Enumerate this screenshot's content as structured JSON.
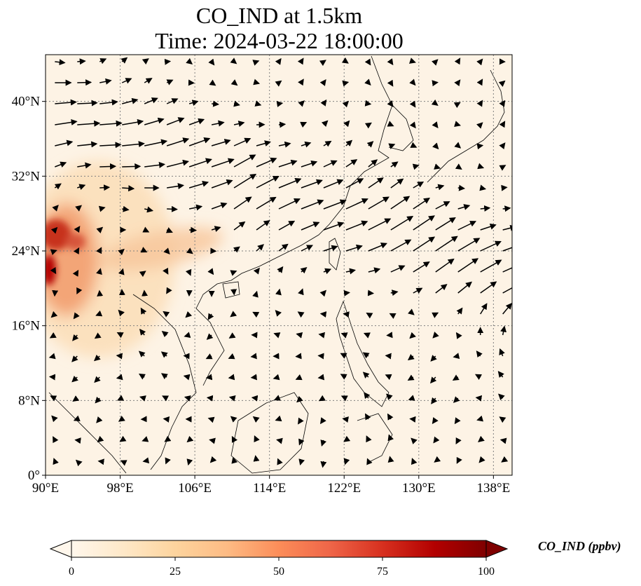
{
  "title": {
    "line1": "CO_IND at 1.5km",
    "line2": "Time: 2024-03-22 18:00:00"
  },
  "map": {
    "projection": "PlateCarree",
    "extent": {
      "lon": [
        90,
        140
      ],
      "lat": [
        0,
        45
      ]
    },
    "grid": true,
    "lon_ticks": [
      {
        "value": 90,
        "label": "90°E"
      },
      {
        "value": 98,
        "label": "98°E"
      },
      {
        "value": 106,
        "label": "106°E"
      },
      {
        "value": 114,
        "label": "114°E"
      },
      {
        "value": 122,
        "label": "122°E"
      },
      {
        "value": 130,
        "label": "130°E"
      },
      {
        "value": 138,
        "label": "138°E"
      }
    ],
    "lat_ticks": [
      {
        "value": 0,
        "label": "0°"
      },
      {
        "value": 8,
        "label": "8°N"
      },
      {
        "value": 16,
        "label": "16°N"
      },
      {
        "value": 24,
        "label": "24°N"
      },
      {
        "value": 32,
        "label": "32°N"
      },
      {
        "value": 40,
        "label": "40°N"
      }
    ]
  },
  "colorbar": {
    "label": "CO_IND (ppbv)",
    "cmap": "OrRd",
    "range": [
      0,
      100
    ],
    "extend": "both",
    "ticks": [
      {
        "value": 0,
        "label": "0"
      },
      {
        "value": 25,
        "label": "25"
      },
      {
        "value": 50,
        "label": "50"
      },
      {
        "value": 75,
        "label": "75"
      },
      {
        "value": 100,
        "label": "100"
      }
    ],
    "colors": [
      "#fff7ec",
      "#fee8c8",
      "#fdd49e",
      "#fdbb84",
      "#fc8d59",
      "#ef6548",
      "#d7301f",
      "#b30000",
      "#7f0000"
    ]
  },
  "colors": {
    "coastline": "#000000",
    "gridline": "#808080",
    "arrow": "#000000",
    "background": "#fdf3e5"
  }
}
